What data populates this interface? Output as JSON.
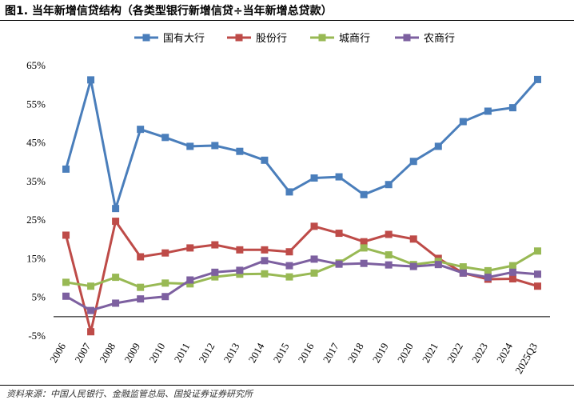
{
  "title": "图1. 当年新增信贷结构（各类型银行新增信贷÷当年新增总贷款）",
  "source": "资料来源：中国人民银行、金融监管总局、国投证券证券研究所",
  "chart_data": {
    "type": "line",
    "title": "",
    "xlabel": "",
    "ylabel": "",
    "x": [
      "2006",
      "2007",
      "2008",
      "2009",
      "2010",
      "2011",
      "2012",
      "2013",
      "2014",
      "2015",
      "2016",
      "2017",
      "2018",
      "2019",
      "2020",
      "2021",
      "2022",
      "2023",
      "2024",
      "2025Q3"
    ],
    "ylim": [
      -5,
      65
    ],
    "yticks": [
      -5,
      5,
      15,
      25,
      35,
      45,
      55,
      65
    ],
    "ytick_labels": [
      "-5%",
      "5%",
      "15%",
      "25%",
      "35%",
      "45%",
      "55%",
      "65%"
    ],
    "grid": false,
    "legend_position": "top",
    "series": [
      {
        "name": "国有大行",
        "color": "#4a7ebb",
        "marker": "square",
        "values": [
          38.2,
          61.3,
          28.0,
          48.5,
          46.4,
          44.1,
          44.3,
          42.8,
          40.5,
          32.3,
          35.9,
          36.2,
          31.6,
          34.2,
          40.2,
          44.1,
          50.5,
          53.2,
          54.1,
          61.4
        ]
      },
      {
        "name": "股份行",
        "color": "#be4b48",
        "marker": "square",
        "values": [
          21.1,
          -3.9,
          24.7,
          15.5,
          16.5,
          17.8,
          18.6,
          17.3,
          17.3,
          16.8,
          23.4,
          21.6,
          19.4,
          21.3,
          20.1,
          15.1,
          11.3,
          9.7,
          9.8,
          7.9
        ]
      },
      {
        "name": "城商行",
        "color": "#98b954",
        "marker": "square",
        "values": [
          8.9,
          7.9,
          10.2,
          7.6,
          8.7,
          8.5,
          10.3,
          11.0,
          11.1,
          10.3,
          11.3,
          13.9,
          17.8,
          16.0,
          13.5,
          14.3,
          12.9,
          11.9,
          13.2,
          17.0
        ]
      },
      {
        "name": "农商行",
        "color": "#7d60a0",
        "marker": "square",
        "values": [
          5.3,
          1.6,
          3.5,
          4.6,
          5.2,
          9.5,
          11.5,
          12.0,
          14.5,
          13.2,
          14.9,
          13.6,
          13.8,
          13.4,
          13.0,
          13.5,
          11.3,
          10.2,
          11.5,
          11.0
        ]
      }
    ]
  }
}
